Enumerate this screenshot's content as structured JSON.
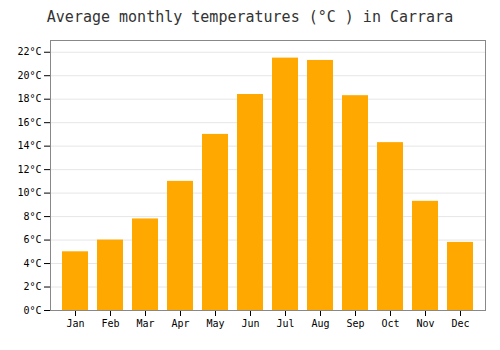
{
  "chart_data": {
    "type": "bar",
    "title": "Average monthly temperatures (°C ) in Carrara",
    "categories": [
      "Jan",
      "Feb",
      "Mar",
      "Apr",
      "May",
      "Jun",
      "Jul",
      "Aug",
      "Sep",
      "Oct",
      "Nov",
      "Dec"
    ],
    "values": [
      5.0,
      6.0,
      7.8,
      11.0,
      15.0,
      18.4,
      21.5,
      21.3,
      18.3,
      14.3,
      9.3,
      5.8
    ],
    "color": "#FFA800",
    "ylim": [
      0,
      23
    ],
    "yticks": [
      {
        "value": 0,
        "label": "0°C"
      },
      {
        "value": 2,
        "label": "2°C"
      },
      {
        "value": 4,
        "label": "4°C"
      },
      {
        "value": 6,
        "label": "6°C"
      },
      {
        "value": 8,
        "label": "8°C"
      },
      {
        "value": 10,
        "label": "10°C"
      },
      {
        "value": 12,
        "label": "12°C"
      },
      {
        "value": 14,
        "label": "14°C"
      },
      {
        "value": 16,
        "label": "16°C"
      },
      {
        "value": 18,
        "label": "18°C"
      },
      {
        "value": 20,
        "label": "20°C"
      },
      {
        "value": 22,
        "label": "22°C"
      }
    ],
    "grid": true
  }
}
